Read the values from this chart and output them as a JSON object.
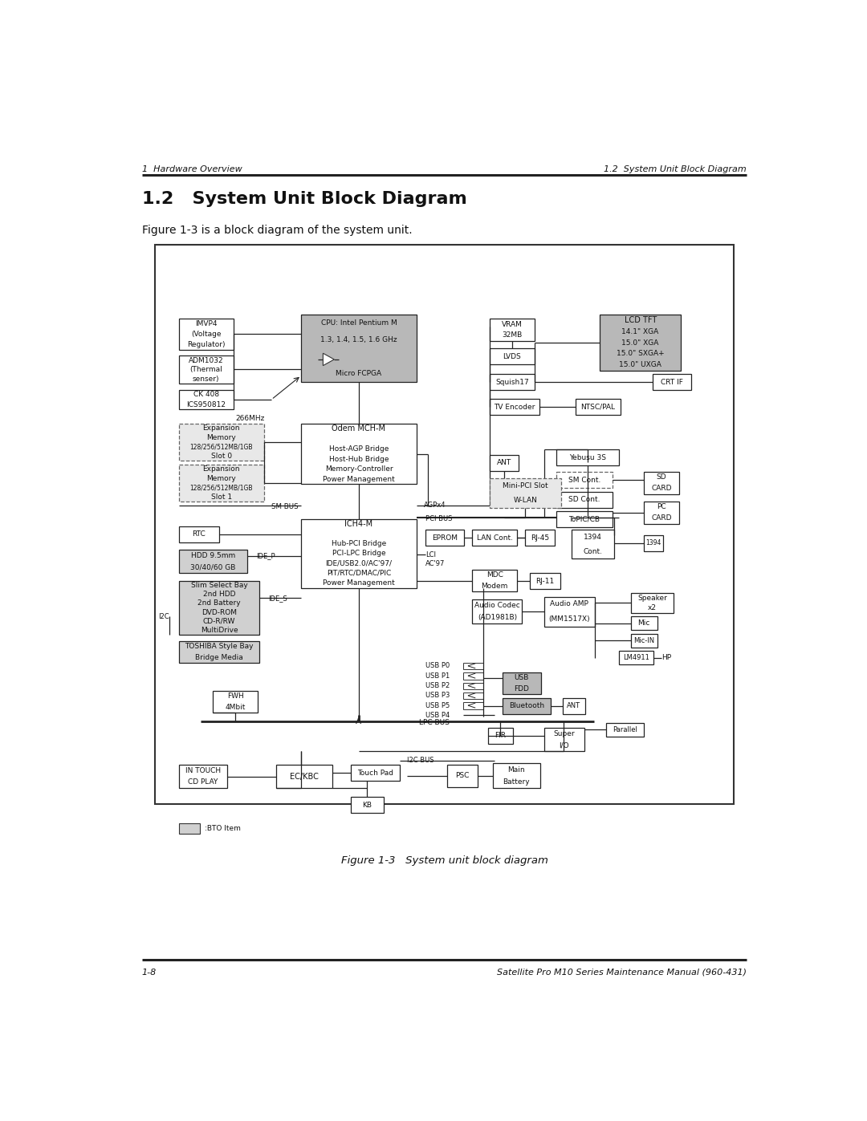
{
  "header_left": "1  Hardware Overview",
  "header_right": "1.2  System Unit Block Diagram",
  "footer_left": "1-8",
  "footer_right": "Satellite Pro M10 Series Maintenance Manual (960-431)",
  "section_title": "1.2   System Unit Block Diagram",
  "figure_caption": "Figure 1-3   System unit block diagram",
  "intro_text": "Figure 1-3 is a block diagram of the system unit.",
  "bg_color": "#ffffff",
  "line_color": "#222222",
  "text_color": "#111111",
  "gray_fill": "#b8b8b8",
  "light_gray_fill": "#d0d0d0",
  "dashed_fill": "#e8e8e8",
  "white_fill": "#ffffff"
}
